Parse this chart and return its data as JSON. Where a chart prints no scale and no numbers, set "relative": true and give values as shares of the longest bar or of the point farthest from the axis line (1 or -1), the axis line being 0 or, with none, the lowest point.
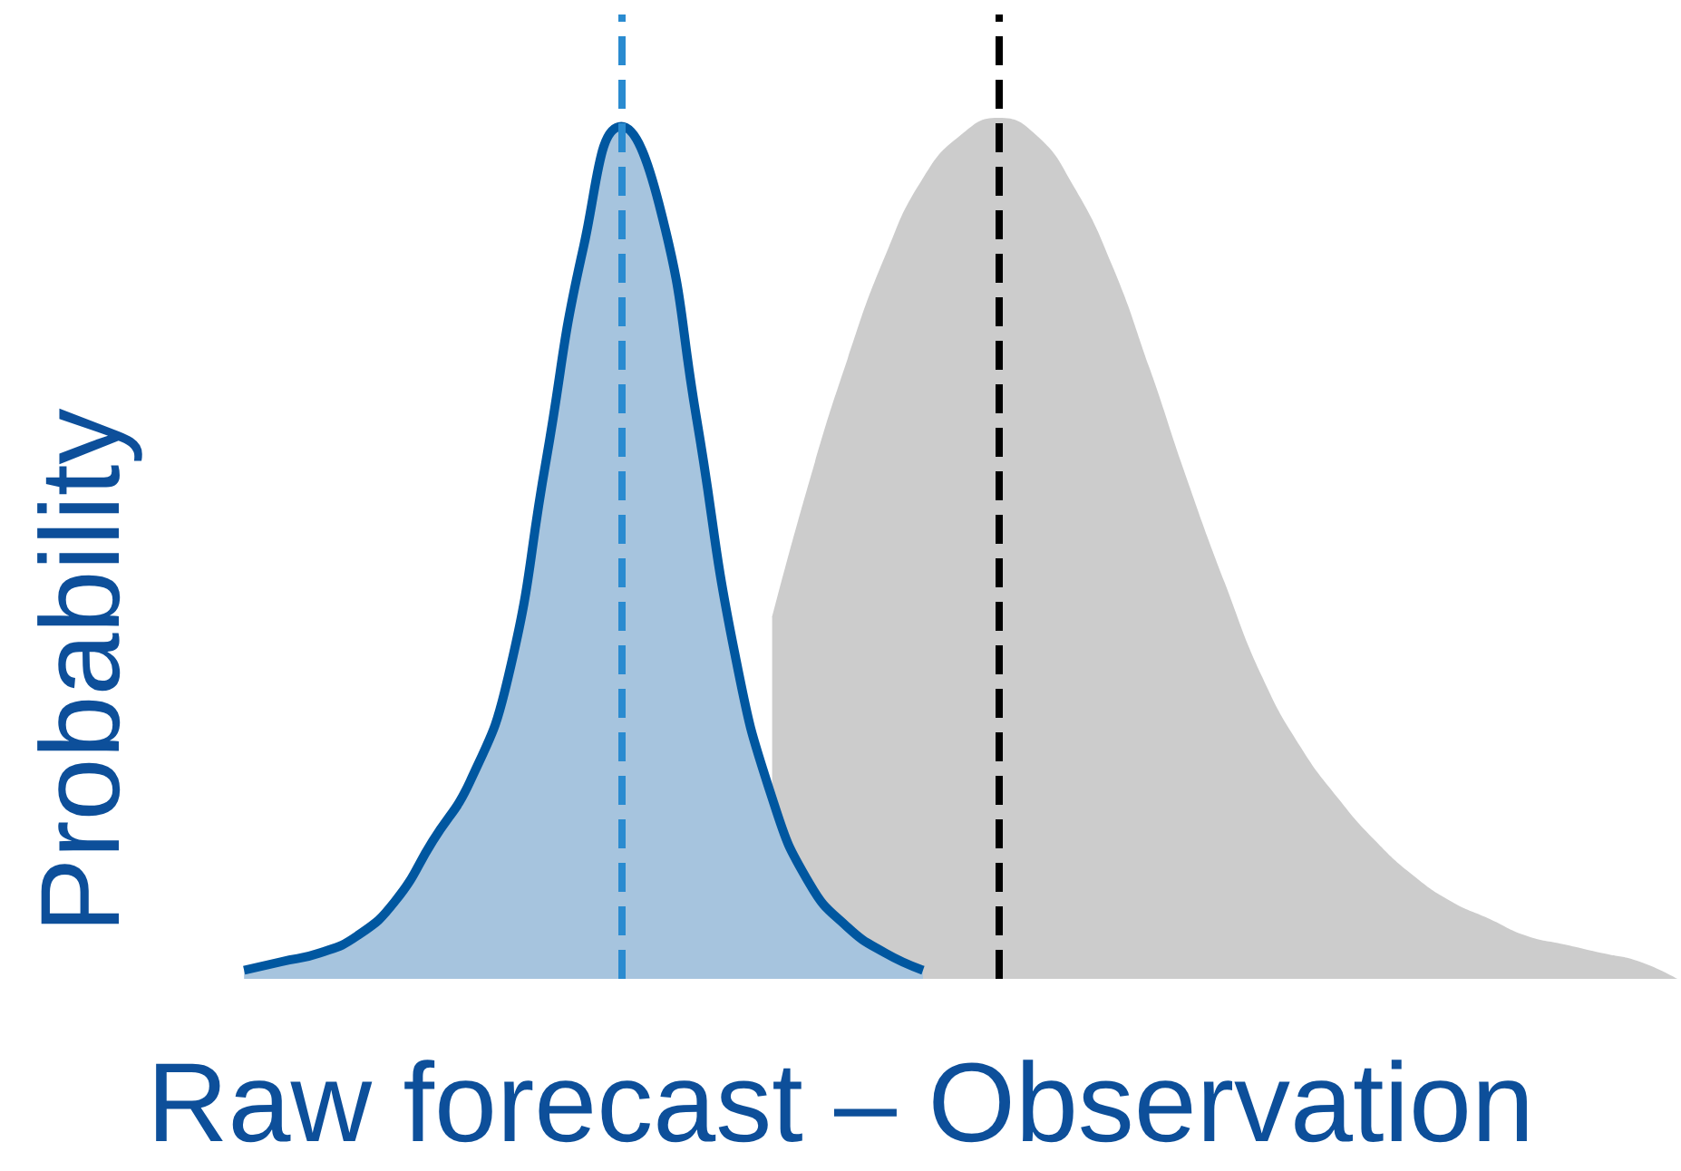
{
  "chart_data": {
    "type": "area",
    "relative": true,
    "xlabel": "Raw forecast – Observation",
    "ylabel": "Probability",
    "grid": false,
    "categories": [
      null,
      null,
      null,
      null,
      null,
      null,
      null,
      null,
      null,
      null,
      null,
      null,
      null,
      null,
      null,
      null,
      null,
      null,
      null,
      null,
      null,
      null,
      null,
      null,
      null,
      null,
      null,
      null,
      null,
      null,
      null,
      null,
      null,
      null,
      null,
      null,
      null,
      null,
      null,
      null,
      null
    ],
    "series": [
      {
        "color": "#cccccc",
        "values": [
          null,
          null,
          null,
          null,
          null,
          null,
          null,
          null,
          null,
          null,
          null,
          null,
          null,
          null,
          null,
          null,
          0.42,
          0.58,
          0.72,
          0.84,
          0.93,
          0.98,
          1,
          0.98,
          0.92,
          0.83,
          0.71,
          0.58,
          0.46,
          0.35,
          0.27,
          0.21,
          0.16,
          0.12,
          0.09,
          0.07,
          0.05,
          0.04,
          0.03,
          0.02,
          0
        ]
      },
      {
        "color": "#0057a0",
        "values": [
          null,
          null,
          0.01,
          0.02,
          0.03,
          0.05,
          0.09,
          0.16,
          0.23,
          0.35,
          0.6,
          0.85,
          0.99,
          0.9,
          0.65,
          0.38,
          0.21,
          0.11,
          0.06,
          0.03,
          0.01,
          null,
          null,
          null,
          null,
          null,
          null,
          null,
          null,
          null,
          null,
          null,
          null,
          null,
          null,
          null,
          null,
          null,
          null,
          null,
          null
        ]
      }
    ]
  }
}
